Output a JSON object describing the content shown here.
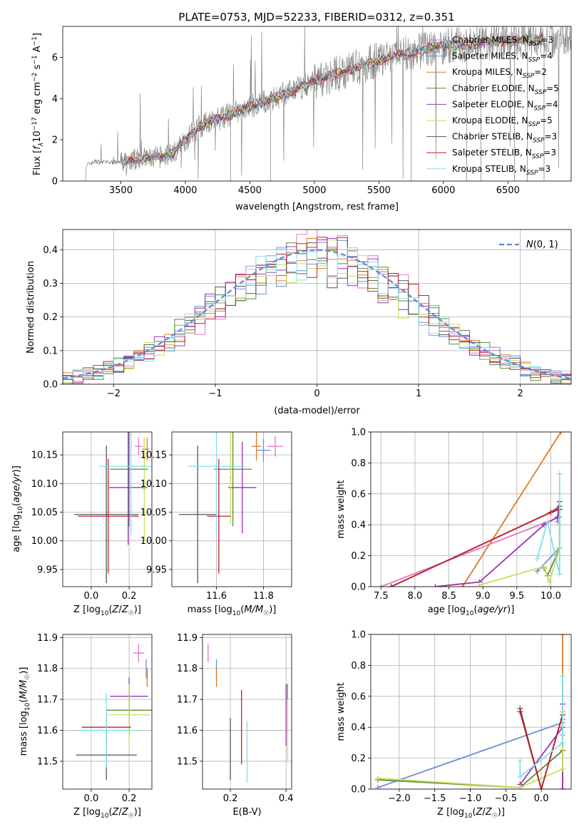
{
  "colors": {
    "chabrier_miles": "#e377c2",
    "salpeter_miles": "#6a8fd8",
    "kroupa_miles": "#e07a24",
    "chabrier_elodie": "#5a8a3c",
    "salpeter_elodie": "#9b30b8",
    "kroupa_elodie": "#c8e05a",
    "chabrier_stelib": "#555555",
    "salpeter_stelib": "#c0202a",
    "kroupa_stelib": "#80e0e8",
    "data": "#888888",
    "normal": "#5b8ad6"
  },
  "chart_data": [
    {
      "id": "spectrum",
      "type": "line",
      "title": "PLATE=0753, MJD=52233, FIBERID=0312, z=0.351",
      "xlabel": "wavelength [Angstrom, rest frame]",
      "ylabel": "Flux [f_λ 10^-17 erg cm^-2 s^-1 A^-1]",
      "xlim": [
        3050,
        6990
      ],
      "ylim": [
        0,
        7.5
      ],
      "xticks": [
        3500,
        4000,
        4500,
        5000,
        5500,
        6000,
        6500
      ],
      "yticks": [
        0,
        2,
        4,
        6
      ],
      "continuum": {
        "x": [
          3230,
          3300,
          3400,
          3500,
          3600,
          3700,
          3800,
          3900,
          4000,
          4100,
          4200,
          4300,
          4400,
          4500,
          4600,
          4700,
          4800,
          4900,
          5000,
          5100,
          5200,
          5300,
          5400,
          5500,
          5600,
          5700,
          5800,
          5900,
          6000,
          6100,
          6200,
          6300,
          6400,
          6500,
          6600,
          6700,
          6780
        ],
        "y": [
          0.75,
          0.95,
          0.9,
          0.9,
          1.05,
          1.1,
          1.15,
          1.35,
          2.0,
          2.6,
          2.95,
          3.1,
          3.35,
          3.6,
          3.8,
          4.05,
          4.3,
          4.55,
          4.85,
          5.05,
          5.25,
          5.45,
          5.65,
          5.85,
          6.0,
          6.15,
          6.3,
          6.45,
          6.55,
          6.6,
          6.65,
          6.7,
          6.75,
          6.8,
          6.85,
          6.85,
          6.85
        ]
      },
      "legend": [
        {
          "name": "Chabrier MILES, N_SSP=3",
          "color_key": "chabrier_miles"
        },
        {
          "name": "Salpeter MILES, N_SSP=4",
          "color_key": "salpeter_miles"
        },
        {
          "name": "Kroupa MILES, N_SSP=2",
          "color_key": "kroupa_miles"
        },
        {
          "name": "Chabrier ELODIE, N_SSP=5",
          "color_key": "chabrier_elodie"
        },
        {
          "name": "Salpeter ELODIE, N_SSP=4",
          "color_key": "salpeter_elodie"
        },
        {
          "name": "Kroupa ELODIE, N_SSP=5",
          "color_key": "kroupa_elodie"
        },
        {
          "name": "Chabrier STELIB, N_SSP=3",
          "color_key": "chabrier_stelib"
        },
        {
          "name": "Salpeter STELIB, N_SSP=3",
          "color_key": "salpeter_stelib"
        },
        {
          "name": "Kroupa STELIB, N_SSP=3",
          "color_key": "kroupa_stelib"
        }
      ],
      "legend_labels": [
        {
          "pre": "Chabrier MILES, N",
          "sub": "SSP",
          "post": "=3"
        },
        {
          "pre": "Salpeter MILES, N",
          "sub": "SSP",
          "post": "=4"
        },
        {
          "pre": "Kroupa MILES, N",
          "sub": "SSP",
          "post": "=2"
        },
        {
          "pre": "Chabrier ELODIE, N",
          "sub": "SSP",
          "post": "=5"
        },
        {
          "pre": "Salpeter ELODIE, N",
          "sub": "SSP",
          "post": "=4"
        },
        {
          "pre": "Kroupa ELODIE, N",
          "sub": "SSP",
          "post": "=5"
        },
        {
          "pre": "Chabrier STELIB, N",
          "sub": "SSP",
          "post": "=3"
        },
        {
          "pre": "Salpeter STELIB, N",
          "sub": "SSP",
          "post": "=3"
        },
        {
          "pre": "Kroupa STELIB, N",
          "sub": "SSP",
          "post": "=3"
        }
      ],
      "legend_placement": "top-right"
    },
    {
      "id": "residuals",
      "type": "histogram",
      "xlabel": "(data-model)/error",
      "ylabel": "Normed distribution",
      "xlim": [
        -2.5,
        2.5
      ],
      "ylim": [
        0,
        0.46
      ],
      "xticks": [
        -2,
        -1,
        0,
        1,
        2
      ],
      "yticks": [
        0.0,
        0.1,
        0.2,
        0.3,
        0.4
      ],
      "grid": true,
      "bin_width": 0.1,
      "reference": {
        "name": "N(0,1)",
        "mean": 0,
        "sigma": 1
      },
      "legend_placement": "top-right"
    },
    {
      "id": "age_vs_Z",
      "type": "errorbar",
      "xlabel": "Z [log10(Z/Z☉)]",
      "ylabel": "age [log10(age/yr)]",
      "xlim": [
        -0.15,
        0.32
      ],
      "ylim": [
        9.92,
        10.19
      ],
      "xticks": [
        0.0,
        0.2
      ],
      "yticks": [
        9.95,
        10.0,
        10.05,
        10.1,
        10.15
      ],
      "grid": true,
      "points": [
        {
          "s": "chabrier_miles",
          "x": 0.25,
          "y": 10.165,
          "xerr": 0.02,
          "yerr": 0.015
        },
        {
          "s": "salpeter_miles",
          "x": 0.28,
          "y": 10.16,
          "xerr": 0.01,
          "yerr": 0.02
        },
        {
          "s": "kroupa_miles",
          "x": 0.295,
          "y": 10.16,
          "xerr": 0.01,
          "yerr": 0.02
        },
        {
          "s": "chabrier_elodie",
          "x": 0.2,
          "y": 10.125,
          "xerr": 0.1,
          "yerr": 0.1
        },
        {
          "s": "salpeter_elodie",
          "x": 0.195,
          "y": 10.093,
          "xerr": 0.1,
          "yerr": 0.1
        },
        {
          "s": "kroupa_elodie",
          "x": 0.28,
          "y": 10.09,
          "xerr": 0.01,
          "yerr": 0.09
        },
        {
          "s": "chabrier_stelib",
          "x": 0.08,
          "y": 10.046,
          "xerr": 0.17,
          "yerr": 0.12
        },
        {
          "s": "salpeter_stelib",
          "x": 0.09,
          "y": 10.043,
          "xerr": 0.16,
          "yerr": 0.1
        },
        {
          "s": "kroupa_stelib",
          "x": 0.21,
          "y": 10.13,
          "xerr": 0.17,
          "yerr": 0.12
        }
      ]
    },
    {
      "id": "age_vs_mass",
      "type": "errorbar",
      "xlabel": "mass [log10(M/M☉)]",
      "ylabel": "",
      "xlim": [
        11.41,
        11.92
      ],
      "ylim": [
        9.92,
        10.19
      ],
      "xticks": [
        11.6,
        11.8
      ],
      "yticks": [
        9.95,
        10.0,
        10.05,
        10.1,
        10.15
      ],
      "grid": true,
      "points": [
        {
          "s": "chabrier_miles",
          "x": 11.85,
          "y": 10.165,
          "xerr": 0.035,
          "yerr": 0.018
        },
        {
          "s": "salpeter_miles",
          "x": 11.8,
          "y": 10.158,
          "xerr": 0.03,
          "yerr": 0.02
        },
        {
          "s": "kroupa_miles",
          "x": 11.77,
          "y": 10.165,
          "xerr": 0.02,
          "yerr": 0.025
        },
        {
          "s": "chabrier_elodie",
          "x": 11.67,
          "y": 10.125,
          "xerr": 0.08,
          "yerr": 0.1
        },
        {
          "s": "salpeter_elodie",
          "x": 11.71,
          "y": 10.093,
          "xerr": 0.06,
          "yerr": 0.08
        },
        {
          "s": "kroupa_elodie",
          "x": 11.66,
          "y": 10.11,
          "xerr": 0.005,
          "yerr": 0.08
        },
        {
          "s": "chabrier_stelib",
          "x": 11.52,
          "y": 10.046,
          "xerr": 0.08,
          "yerr": 0.12
        },
        {
          "s": "salpeter_stelib",
          "x": 11.61,
          "y": 10.043,
          "xerr": 0.05,
          "yerr": 0.1
        },
        {
          "s": "kroupa_stelib",
          "x": 11.6,
          "y": 10.13,
          "xerr": 0.12,
          "yerr": 0.12
        }
      ]
    },
    {
      "id": "weight_vs_age",
      "type": "line",
      "xlabel": "age [log10(age/yr)]",
      "ylabel": "mass weight",
      "xlim": [
        7.35,
        10.3
      ],
      "ylim": [
        0,
        1.0
      ],
      "xticks": [
        7.5,
        8.0,
        8.5,
        9.0,
        9.5,
        10.0
      ],
      "yticks": [
        0.0,
        0.2,
        0.4,
        0.6,
        0.8,
        1.0
      ],
      "grid": true,
      "series": [
        {
          "s": "chabrier_miles",
          "x": [
            7.5,
            10.13,
            10.13
          ],
          "y": [
            0.0,
            0.45,
            0.5
          ]
        },
        {
          "s": "salpeter_miles",
          "x": [
            9.8,
            10.13,
            10.13,
            10.1
          ],
          "y": [
            0.1,
            0.25,
            0.55,
            0.42
          ]
        },
        {
          "s": "kroupa_miles",
          "x": [
            8.7,
            10.15
          ],
          "y": [
            0.0,
            1.0
          ]
        },
        {
          "s": "chabrier_elodie",
          "x": [
            9.9,
            9.95,
            10.13,
            10.13,
            10.0
          ],
          "y": [
            0.12,
            0.07,
            0.25,
            0.5,
            0.48
          ]
        },
        {
          "s": "salpeter_elodie",
          "x": [
            8.3,
            8.95,
            9.9,
            10.1,
            10.13
          ],
          "y": [
            0.0,
            0.03,
            0.4,
            0.45,
            0.55
          ]
        },
        {
          "s": "kroupa_elodie",
          "x": [
            8.95,
            9.9,
            9.98,
            10.13,
            10.13
          ],
          "y": [
            0.01,
            0.13,
            0.03,
            0.25,
            0.5
          ]
        },
        {
          "s": "chabrier_stelib",
          "x": [
            7.65,
            10.0,
            10.13
          ],
          "y": [
            0.0,
            0.48,
            0.52
          ]
        },
        {
          "s": "salpeter_stelib",
          "x": [
            7.65,
            10.0,
            10.13
          ],
          "y": [
            0.0,
            0.48,
            0.5
          ]
        },
        {
          "s": "kroupa_stelib",
          "x": [
            9.8,
            9.95,
            10.13,
            10.13
          ],
          "y": [
            0.18,
            0.42,
            0.08,
            0.73
          ]
        }
      ]
    },
    {
      "id": "mass_vs_Z",
      "type": "errorbar",
      "xlabel": "Z [log10(Z/Z☉)]",
      "ylabel": "mass [log10(M/M☉)]",
      "xlim": [
        -0.15,
        0.32
      ],
      "ylim": [
        11.41,
        11.91
      ],
      "xticks": [
        0.0,
        0.2
      ],
      "yticks": [
        11.5,
        11.6,
        11.7,
        11.8,
        11.9
      ],
      "grid": true,
      "points": [
        {
          "s": "chabrier_miles",
          "x": 0.25,
          "y": 11.85,
          "xerr": 0.03,
          "yerr": 0.03
        },
        {
          "s": "salpeter_miles",
          "x": 0.29,
          "y": 11.8,
          "xerr": 0.005,
          "yerr": 0.03
        },
        {
          "s": "kroupa_miles",
          "x": 0.295,
          "y": 11.77,
          "xerr": 0.005,
          "yerr": 0.03
        },
        {
          "s": "chabrier_elodie",
          "x": 0.2,
          "y": 11.665,
          "xerr": 0.12,
          "yerr": 0.08
        },
        {
          "s": "salpeter_elodie",
          "x": 0.2,
          "y": 11.71,
          "xerr": 0.1,
          "yerr": 0.06
        },
        {
          "s": "kroupa_elodie",
          "x": 0.2,
          "y": 11.65,
          "xerr": 0.11,
          "yerr": 0.1
        },
        {
          "s": "chabrier_stelib",
          "x": 0.08,
          "y": 11.52,
          "xerr": 0.16,
          "yerr": 0.08
        },
        {
          "s": "salpeter_stelib",
          "x": 0.08,
          "y": 11.61,
          "xerr": 0.13,
          "yerr": 0.05
        },
        {
          "s": "kroupa_stelib",
          "x": 0.08,
          "y": 11.6,
          "xerr": 0.15,
          "yerr": 0.12
        }
      ]
    },
    {
      "id": "mass_vs_ebv",
      "type": "errorbar",
      "xlabel": "E(B-V)",
      "ylabel": "",
      "xlim": [
        0.1,
        0.42
      ],
      "ylim": [
        11.41,
        11.91
      ],
      "xticks": [
        0.2,
        0.4
      ],
      "yticks": [
        11.5,
        11.6,
        11.7,
        11.8,
        11.9
      ],
      "grid": true,
      "points": [
        {
          "s": "chabrier_miles",
          "x": 0.12,
          "y": 11.85,
          "xerr": 0.0,
          "yerr": 0.03
        },
        {
          "s": "salpeter_miles",
          "x": 0.15,
          "y": 11.8,
          "xerr": 0.0,
          "yerr": 0.03
        },
        {
          "s": "kroupa_miles",
          "x": 0.15,
          "y": 11.77,
          "xerr": 0.0,
          "yerr": 0.03
        },
        {
          "s": "chabrier_elodie",
          "x": 0.405,
          "y": 11.67,
          "xerr": 0.0,
          "yerr": 0.08
        },
        {
          "s": "salpeter_elodie",
          "x": 0.4,
          "y": 11.65,
          "xerr": 0.0,
          "yerr": 0.1
        },
        {
          "s": "kroupa_elodie",
          "x": 0.405,
          "y": 11.6,
          "xerr": 0.0,
          "yerr": 0.1
        },
        {
          "s": "chabrier_stelib",
          "x": 0.2,
          "y": 11.54,
          "xerr": 0.0,
          "yerr": 0.1
        },
        {
          "s": "salpeter_stelib",
          "x": 0.24,
          "y": 11.61,
          "xerr": 0.0,
          "yerr": 0.12
        },
        {
          "s": "kroupa_stelib",
          "x": 0.26,
          "y": 11.53,
          "xerr": 0.0,
          "yerr": 0.1
        }
      ]
    },
    {
      "id": "weight_vs_Z",
      "type": "line",
      "xlabel": "Z [log10(Z/Z☉)]",
      "ylabel": "mass weight",
      "xlim": [
        -2.4,
        0.42
      ],
      "ylim": [
        0,
        1.0
      ],
      "xticks": [
        -2.0,
        -1.5,
        -1.0,
        -0.5,
        0.0
      ],
      "yticks": [
        0.0,
        0.2,
        0.4,
        0.6,
        0.8,
        1.0
      ],
      "grid": true,
      "series": [
        {
          "s": "chabrier_miles",
          "x": [
            0.3,
            0.3,
            0.3
          ],
          "y": [
            0.5,
            0.45,
            0.35
          ]
        },
        {
          "s": "salpeter_miles",
          "x": [
            -2.3,
            0.3,
            0.3
          ],
          "y": [
            0.01,
            0.43,
            0.55
          ]
        },
        {
          "s": "kroupa_miles",
          "x": [
            0.3,
            0.3
          ],
          "y": [
            0.0,
            1.0
          ]
        },
        {
          "s": "chabrier_elodie",
          "x": [
            -2.3,
            -0.3,
            0.3,
            0.3
          ],
          "y": [
            0.06,
            0.01,
            0.25,
            0.5
          ]
        },
        {
          "s": "salpeter_elodie",
          "x": [
            -0.3,
            0.3,
            0.3,
            0.3
          ],
          "y": [
            0.03,
            0.4,
            0.0,
            0.55
          ]
        },
        {
          "s": "kroupa_elodie",
          "x": [
            -2.3,
            -0.3,
            0.3,
            0.3
          ],
          "y": [
            0.07,
            0.01,
            0.13,
            0.5
          ]
        },
        {
          "s": "chabrier_stelib",
          "x": [
            -0.3,
            0.0,
            0.3
          ],
          "y": [
            0.52,
            0.0,
            0.48
          ]
        },
        {
          "s": "salpeter_stelib",
          "x": [
            -0.3,
            0.0,
            0.3
          ],
          "y": [
            0.5,
            0.0,
            0.48
          ]
        },
        {
          "s": "kroupa_stelib",
          "x": [
            -0.3,
            -0.3,
            0.3,
            0.3
          ],
          "y": [
            0.18,
            0.08,
            0.3,
            0.73
          ]
        }
      ]
    }
  ]
}
